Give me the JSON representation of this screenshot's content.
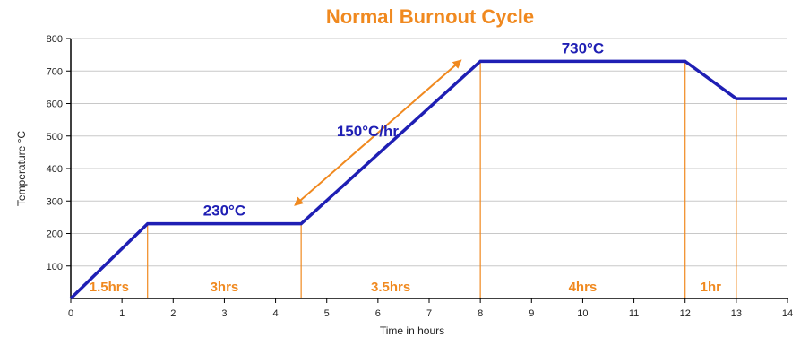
{
  "chart_data": {
    "type": "line",
    "title": "Normal Burnout Cycle",
    "xlabel": "Time in hours",
    "ylabel": "Temperature °C",
    "xlim": [
      0,
      14
    ],
    "ylim": [
      0,
      800
    ],
    "x_ticks": [
      0,
      1,
      2,
      3,
      4,
      5,
      6,
      7,
      8,
      9,
      10,
      11,
      12,
      13,
      14
    ],
    "y_ticks": [
      100,
      200,
      300,
      400,
      500,
      600,
      700,
      800
    ],
    "grid": true,
    "series": [
      {
        "x": [
          0,
          1.5,
          4.5,
          8,
          12,
          13,
          14
        ],
        "y": [
          0,
          230,
          230,
          730,
          730,
          615,
          615
        ],
        "color": "#1f1fb4"
      }
    ],
    "phase_markers": [
      1.5,
      4.5,
      8,
      12,
      13
    ],
    "phase_labels": [
      {
        "text": "1.5hrs",
        "x_start": 0,
        "x_end": 1.5
      },
      {
        "text": "3hrs",
        "x_start": 1.5,
        "x_end": 4.5
      },
      {
        "text": "3.5hrs",
        "x_start": 4.5,
        "x_end": 8
      },
      {
        "text": "4hrs",
        "x_start": 8,
        "x_end": 12
      },
      {
        "text": "1hr",
        "x_start": 12,
        "x_end": 13
      }
    ],
    "annotations": [
      {
        "text": "230°C",
        "x": 3,
        "y": 230
      },
      {
        "text": "730°C",
        "x": 10,
        "y": 730
      },
      {
        "text": "150°C/hr",
        "x": 5.8,
        "y": 500
      }
    ],
    "rate_arrow": {
      "from": [
        4.4,
        290
      ],
      "to": [
        7.6,
        730
      ]
    },
    "colors": {
      "line": "#1f1fb4",
      "accent": "#f0891f",
      "grid": "#c8c8c8",
      "axis": "#000000",
      "text": "#222222"
    }
  }
}
